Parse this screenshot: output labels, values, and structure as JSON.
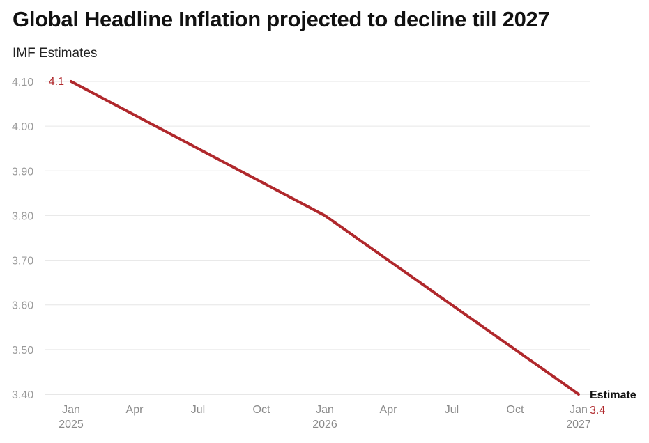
{
  "title": "Global Headline Inflation projected to decline till 2027",
  "subtitle": "IMF Estimates",
  "chart_data": {
    "type": "line",
    "title": "Global Headline Inflation projected to decline till 2027",
    "subtitle": "IMF Estimates",
    "xlabel": "",
    "ylabel": "",
    "x": [
      "2025-01",
      "2026-01",
      "2027-01"
    ],
    "series": [
      {
        "name": "Estimate",
        "values": [
          4.1,
          3.8,
          3.4
        ],
        "color": "#b0282c"
      }
    ],
    "ylim": [
      3.4,
      4.1
    ],
    "y_ticks": [
      "3.40",
      "3.50",
      "3.60",
      "3.70",
      "3.80",
      "3.90",
      "4.00",
      "4.10"
    ],
    "x_ticks": [
      {
        "label": "Jan",
        "year": "2025"
      },
      {
        "label": "Apr",
        "year": ""
      },
      {
        "label": "Jul",
        "year": ""
      },
      {
        "label": "Oct",
        "year": ""
      },
      {
        "label": "Jan",
        "year": "2026"
      },
      {
        "label": "Apr",
        "year": ""
      },
      {
        "label": "Jul",
        "year": ""
      },
      {
        "label": "Oct",
        "year": ""
      },
      {
        "label": "Jan",
        "year": "2027"
      }
    ],
    "data_labels": [
      {
        "point": 0,
        "text": "4.1"
      },
      {
        "point": 2,
        "text": "3.4"
      }
    ],
    "series_label": "Estimate",
    "grid": true,
    "legend": "none"
  }
}
